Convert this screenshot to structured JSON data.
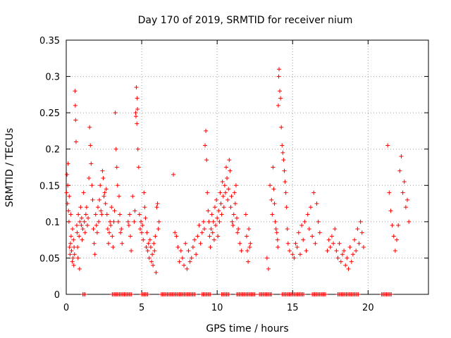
{
  "chart_data": {
    "type": "scatter",
    "title": "Day 170 of 2019, SRMTID for receiver nium",
    "xlabel": "GPS time / hours",
    "ylabel": "SRMTID / TECUs",
    "xlim": [
      0,
      24
    ],
    "ylim": [
      0,
      0.35
    ],
    "x_ticks": [
      0,
      5,
      10,
      15,
      20
    ],
    "x_tick_labels": [
      "0",
      "5",
      "10",
      "15",
      "20"
    ],
    "y_ticks": [
      0,
      0.05,
      0.1,
      0.15,
      0.2,
      0.25,
      0.3,
      0.35
    ],
    "y_tick_labels": [
      "0",
      "0.05",
      "0.1",
      "0.15",
      "0.2",
      "0.25",
      "0.3",
      "0.35"
    ],
    "grid": true,
    "marker": "+",
    "color": "#ff0000",
    "series": [
      {
        "name": "SRMTID",
        "x": [
          0.02,
          0.05,
          0.08,
          0.1,
          0.12,
          0.15,
          0.18,
          0.2,
          0.22,
          0.25,
          0.28,
          0.3,
          0.32,
          0.35,
          0.4,
          0.42,
          0.45,
          0.48,
          0.5,
          0.52,
          0.55,
          0.58,
          0.6,
          0.62,
          0.65,
          0.7,
          0.72,
          0.75,
          0.78,
          0.8,
          0.85,
          0.88,
          0.9,
          0.95,
          1.0,
          1.02,
          1.05,
          1.1,
          1.15,
          1.2,
          1.25,
          1.3,
          1.35,
          1.4,
          1.45,
          1.5,
          1.55,
          1.6,
          1.65,
          1.7,
          1.75,
          1.8,
          1.85,
          1.9,
          1.95,
          2.0,
          2.05,
          2.1,
          2.15,
          2.2,
          2.25,
          2.3,
          2.35,
          2.4,
          2.45,
          2.5,
          2.55,
          2.6,
          2.65,
          2.7,
          2.75,
          2.8,
          2.85,
          2.9,
          2.95,
          3.0,
          3.05,
          3.1,
          3.15,
          3.2,
          3.25,
          3.3,
          3.35,
          3.4,
          3.45,
          3.5,
          3.55,
          3.6,
          3.65,
          3.7,
          4.1,
          4.15,
          4.2,
          4.25,
          4.3,
          4.4,
          4.5,
          4.55,
          4.6,
          4.62,
          4.65,
          4.68,
          4.7,
          4.72,
          4.75,
          4.8,
          4.85,
          4.9,
          4.95,
          5.0,
          5.05,
          5.1,
          5.15,
          5.2,
          5.25,
          5.3,
          5.35,
          5.4,
          5.45,
          5.5,
          5.55,
          5.6,
          5.65,
          5.7,
          5.75,
          5.8,
          5.85,
          5.9,
          5.95,
          6.0,
          6.05,
          6.1,
          6.15,
          7.1,
          7.2,
          7.3,
          7.4,
          7.5,
          7.6,
          7.7,
          7.8,
          7.9,
          8.0,
          8.1,
          8.2,
          8.3,
          8.4,
          8.5,
          8.6,
          8.7,
          8.8,
          8.9,
          9.0,
          9.1,
          9.15,
          9.2,
          9.25,
          9.3,
          9.35,
          9.4,
          9.45,
          9.5,
          9.55,
          9.6,
          9.65,
          9.7,
          9.75,
          9.8,
          9.85,
          9.9,
          9.95,
          10.0,
          10.05,
          10.1,
          10.15,
          10.2,
          10.25,
          10.3,
          10.35,
          10.4,
          10.45,
          10.5,
          10.55,
          10.6,
          10.65,
          10.7,
          10.75,
          10.8,
          10.85,
          10.9,
          10.95,
          11.0,
          11.05,
          11.1,
          11.15,
          11.2,
          11.25,
          11.3,
          11.35,
          11.4,
          11.5,
          11.6,
          11.9,
          11.95,
          12.0,
          12.05,
          12.1,
          12.15,
          12.2,
          13.3,
          13.4,
          13.5,
          13.6,
          13.65,
          13.7,
          13.75,
          13.8,
          13.85,
          13.9,
          13.95,
          14.0,
          14.02,
          14.05,
          14.08,
          14.1,
          14.15,
          14.2,
          14.25,
          14.3,
          14.35,
          14.4,
          14.45,
          14.5,
          14.55,
          14.6,
          14.65,
          14.7,
          14.8,
          15.0,
          15.1,
          15.2,
          15.3,
          15.4,
          15.5,
          15.6,
          15.7,
          15.8,
          15.9,
          16.0,
          16.1,
          16.2,
          16.3,
          16.4,
          16.5,
          16.6,
          16.7,
          16.8,
          17.3,
          17.4,
          17.5,
          17.6,
          17.7,
          17.8,
          17.9,
          18.0,
          18.1,
          18.2,
          18.3,
          18.4,
          18.5,
          18.6,
          18.7,
          18.8,
          18.9,
          19.0,
          19.1,
          19.2,
          19.3,
          19.4,
          19.5,
          19.6,
          19.7,
          21.3,
          21.4,
          21.5,
          21.6,
          21.7,
          21.8,
          21.9,
          22.0,
          22.1,
          22.2,
          22.3,
          22.4,
          22.5,
          22.6,
          22.7
        ],
        "y": [
          0.14,
          0.165,
          0.125,
          0.15,
          0.18,
          0.115,
          0.1,
          0.135,
          0.065,
          0.055,
          0.07,
          0.11,
          0.08,
          0.06,
          0.045,
          0.09,
          0.05,
          0.075,
          0.04,
          0.065,
          0.055,
          0.28,
          0.26,
          0.24,
          0.21,
          0.095,
          0.085,
          0.065,
          0.05,
          0.11,
          0.08,
          0.035,
          0.1,
          0.12,
          0.095,
          0.105,
          0.075,
          0.09,
          0.14,
          0.1,
          0.085,
          0.11,
          0.12,
          0.095,
          0.105,
          0.16,
          0.23,
          0.205,
          0.18,
          0.15,
          0.13,
          0.09,
          0.07,
          0.055,
          0.11,
          0.095,
          0.085,
          0.12,
          0.1,
          0.13,
          0.15,
          0.115,
          0.11,
          0.17,
          0.16,
          0.135,
          0.14,
          0.125,
          0.145,
          0.11,
          0.09,
          0.07,
          0.085,
          0.1,
          0.095,
          0.12,
          0.08,
          0.065,
          0.1,
          0.115,
          0.25,
          0.2,
          0.175,
          0.15,
          0.1,
          0.135,
          0.11,
          0.085,
          0.09,
          0.07,
          0.1,
          0.095,
          0.11,
          0.08,
          0.06,
          0.135,
          0.1,
          0.115,
          0.25,
          0.245,
          0.285,
          0.235,
          0.27,
          0.255,
          0.2,
          0.175,
          0.11,
          0.09,
          0.1,
          0.085,
          0.095,
          0.075,
          0.14,
          0.12,
          0.105,
          0.065,
          0.085,
          0.06,
          0.07,
          0.05,
          0.075,
          0.065,
          0.045,
          0.055,
          0.04,
          0.07,
          0.06,
          0.08,
          0.03,
          0.12,
          0.125,
          0.09,
          0.1,
          0.165,
          0.085,
          0.08,
          0.065,
          0.045,
          0.06,
          0.05,
          0.04,
          0.07,
          0.035,
          0.06,
          0.045,
          0.05,
          0.065,
          0.075,
          0.055,
          0.08,
          0.095,
          0.07,
          0.085,
          0.1,
          0.09,
          0.205,
          0.225,
          0.185,
          0.14,
          0.115,
          0.1,
          0.08,
          0.065,
          0.09,
          0.11,
          0.085,
          0.1,
          0.075,
          0.12,
          0.095,
          0.13,
          0.105,
          0.08,
          0.115,
          0.1,
          0.14,
          0.125,
          0.11,
          0.155,
          0.135,
          0.12,
          0.15,
          0.14,
          0.175,
          0.16,
          0.13,
          0.145,
          0.185,
          0.17,
          0.12,
          0.135,
          0.1,
          0.095,
          0.11,
          0.14,
          0.125,
          0.15,
          0.105,
          0.085,
          0.09,
          0.07,
          0.06,
          0.11,
          0.08,
          0.06,
          0.045,
          0.09,
          0.065,
          0.07,
          0.05,
          0.035,
          0.15,
          0.13,
          0.11,
          0.175,
          0.145,
          0.125,
          0.1,
          0.09,
          0.085,
          0.075,
          0.065,
          0.26,
          0.3,
          0.31,
          0.28,
          0.27,
          0.23,
          0.205,
          0.195,
          0.185,
          0.17,
          0.155,
          0.14,
          0.12,
          0.09,
          0.07,
          0.06,
          0.055,
          0.05,
          0.07,
          0.065,
          0.085,
          0.055,
          0.095,
          0.075,
          0.1,
          0.06,
          0.11,
          0.09,
          0.12,
          0.08,
          0.14,
          0.07,
          0.125,
          0.1,
          0.085,
          0.06,
          0.075,
          0.065,
          0.08,
          0.07,
          0.09,
          0.06,
          0.05,
          0.07,
          0.045,
          0.055,
          0.06,
          0.04,
          0.05,
          0.035,
          0.065,
          0.045,
          0.055,
          0.075,
          0.06,
          0.09,
          0.07,
          0.1,
          0.085,
          0.065,
          0.205,
          0.14,
          0.115,
          0.095,
          0.08,
          0.06,
          0.075,
          0.095,
          0.17,
          0.19,
          0.14,
          0.155,
          0.12,
          0.13,
          0.1
        ]
      }
    ],
    "zero_bands_hours": [
      [
        1.1,
        1.3
      ],
      [
        3.05,
        4.4
      ],
      [
        5.0,
        5.4
      ],
      [
        6.3,
        8.6
      ],
      [
        9.0,
        9.6
      ],
      [
        10.3,
        10.8
      ],
      [
        11.3,
        12.5
      ],
      [
        12.8,
        13.6
      ],
      [
        14.3,
        15.8
      ],
      [
        16.3,
        17.2
      ],
      [
        18.0,
        19.4
      ],
      [
        20.9,
        21.6
      ]
    ]
  }
}
